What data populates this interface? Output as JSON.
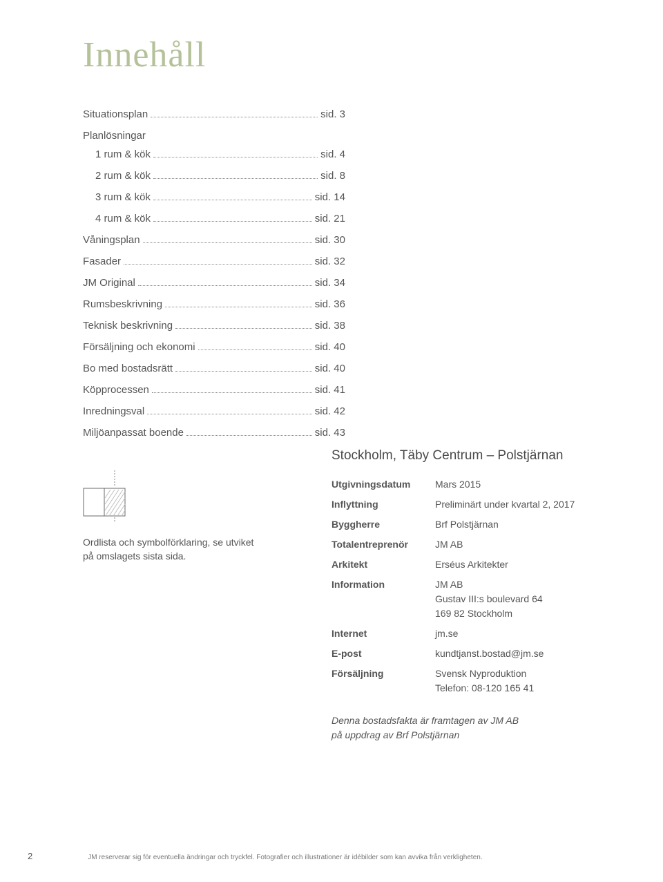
{
  "title": "Innehåll",
  "toc": [
    {
      "label": "Situationsplan",
      "page": "sid. 3",
      "indent": false
    },
    {
      "label": "Planlösningar",
      "page": null,
      "indent": false
    },
    {
      "label": "1 rum & kök",
      "page": "sid. 4",
      "indent": true
    },
    {
      "label": "2 rum & kök",
      "page": "sid. 8",
      "indent": true
    },
    {
      "label": "3 rum & kök",
      "page": "sid. 14",
      "indent": true
    },
    {
      "label": "4 rum & kök",
      "page": "sid. 21",
      "indent": true
    },
    {
      "label": "Våningsplan",
      "page": "sid. 30",
      "indent": false
    },
    {
      "label": "Fasader",
      "page": "sid. 32",
      "indent": false
    },
    {
      "label": "JM Original",
      "page": "sid. 34",
      "indent": false
    },
    {
      "label": "Rumsbeskrivning",
      "page": "sid. 36",
      "indent": false
    },
    {
      "label": "Teknisk beskrivning",
      "page": "sid. 38",
      "indent": false
    },
    {
      "label": "Försäljning och ekonomi",
      "page": "sid. 40",
      "indent": false
    },
    {
      "label": "Bo med bostadsrätt",
      "page": "sid. 40",
      "indent": false
    },
    {
      "label": "Köpprocessen",
      "page": "sid. 41",
      "indent": false
    },
    {
      "label": "Inredningsval",
      "page": "sid. 42",
      "indent": false
    },
    {
      "label": "Miljöanpassat boende",
      "page": "sid. 43",
      "indent": false
    }
  ],
  "symbol": {
    "caption_l1": "Ordlista och symbolförklaring, se utviket",
    "caption_l2": "på omslagets sista sida.",
    "stroke": "#6a6a6a",
    "hatch": "#bfbfbf",
    "bg": "#ffffff"
  },
  "project": {
    "title": "Stockholm, Täby Centrum – Polstjärnan",
    "rows": [
      {
        "key": "Utgivningsdatum",
        "val": [
          "Mars 2015"
        ]
      },
      {
        "key": "Inflyttning",
        "val": [
          "Preliminärt under kvartal 2, 2017"
        ]
      },
      {
        "key": "Byggherre",
        "val": [
          "Brf Polstjärnan"
        ]
      },
      {
        "key": "Totalentreprenör",
        "val": [
          "JM AB"
        ]
      },
      {
        "key": "Arkitekt",
        "val": [
          "Erséus Arkitekter"
        ]
      },
      {
        "key": "Information",
        "val": [
          "JM AB",
          "Gustav III:s boulevard 64",
          "169 82 Stockholm"
        ]
      },
      {
        "key": "Internet",
        "val": [
          "jm.se"
        ]
      },
      {
        "key": "E-post",
        "val": [
          "kundtjanst.bostad@jm.se"
        ]
      },
      {
        "key": "Försäljning",
        "val": [
          "Svensk Nyproduktion",
          "Telefon: 08-120 165 41"
        ]
      }
    ]
  },
  "credit_l1": "Denna bostadsfakta är framtagen av JM AB",
  "credit_l2": "på uppdrag av Brf Polstjärnan",
  "page_number": "2",
  "disclaimer": "JM reserverar sig för eventuella ändringar och tryckfel. Fotografier och illustrationer är idébilder som kan avvika från verkligheten."
}
